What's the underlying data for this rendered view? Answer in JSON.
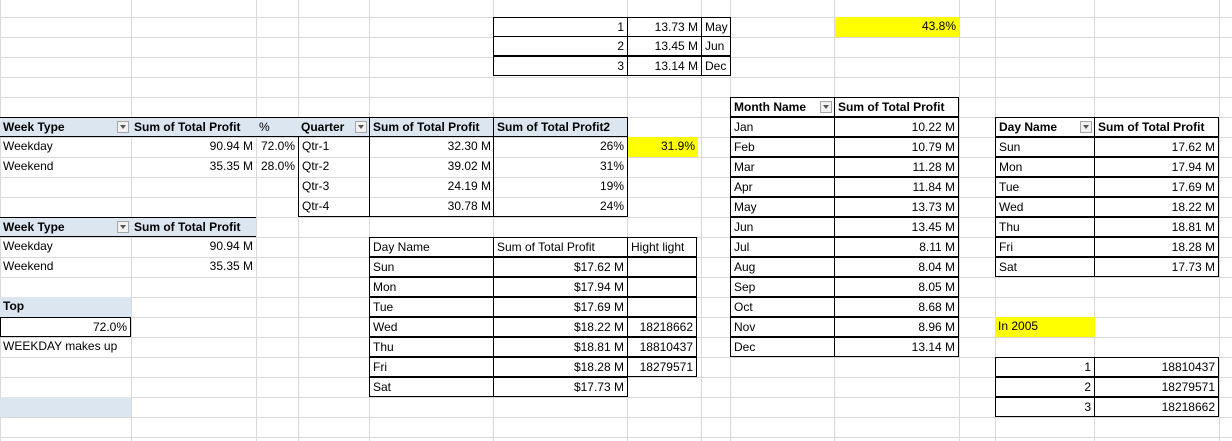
{
  "colors": {
    "highlight": "#ffff00",
    "pivot_header": "#dce6f1",
    "gridline": "#d9d9d9"
  },
  "top_month_list": [
    {
      "rank": "1",
      "value": "13.73 M",
      "month": "May"
    },
    {
      "rank": "2",
      "value": "13.45 M",
      "month": "Jun"
    },
    {
      "rank": "3",
      "value": "13.14 M",
      "month": "Dec"
    }
  ],
  "highlight_pct_top": "43.8%",
  "week_type_pivot": {
    "headers": [
      "Week Type",
      "Sum of Total Profit",
      "%"
    ],
    "rows": [
      {
        "type": "Weekday",
        "profit": "90.94 M",
        "pct": "72.0%"
      },
      {
        "type": "Weekend",
        "profit": "35.35 M",
        "pct": "28.0%"
      }
    ]
  },
  "quarter_pivot": {
    "headers": [
      "Quarter",
      "Sum of Total Profit",
      "Sum of Total Profit2"
    ],
    "rows": [
      {
        "q": "Qtr-1",
        "profit": "32.30 M",
        "pct": "26%"
      },
      {
        "q": "Qtr-2",
        "profit": "39.02 M",
        "pct": "31%"
      },
      {
        "q": "Qtr-3",
        "profit": "24.19 M",
        "pct": "19%"
      },
      {
        "q": "Qtr-4",
        "profit": "30.78 M",
        "pct": "24%"
      }
    ]
  },
  "highlight_pct_quarter": "31.9%",
  "week_type_pivot2": {
    "headers": [
      "Week Type",
      "Sum of Total Profit"
    ],
    "rows": [
      {
        "type": "Weekday",
        "profit": "90.94 M"
      },
      {
        "type": "Weekend",
        "profit": "35.35 M"
      }
    ]
  },
  "top_box": {
    "title": "Top",
    "value": "72.0%",
    "caption": "WEEKDAY makes up"
  },
  "day_table": {
    "headers": [
      "Day Name",
      "Sum of Total Profit",
      "Hight light"
    ],
    "rows": [
      {
        "day": "Sun",
        "profit": "$17.62 M",
        "hl": ""
      },
      {
        "day": "Mon",
        "profit": "$17.94 M",
        "hl": ""
      },
      {
        "day": "Tue",
        "profit": "$17.69 M",
        "hl": ""
      },
      {
        "day": "Wed",
        "profit": "$18.22 M",
        "hl": "18218662"
      },
      {
        "day": "Thu",
        "profit": "$18.81 M",
        "hl": "18810437"
      },
      {
        "day": "Fri",
        "profit": "$18.28 M",
        "hl": "18279571"
      },
      {
        "day": "Sat",
        "profit": "$17.73 M",
        "hl": ""
      }
    ]
  },
  "month_pivot": {
    "headers": [
      "Month Name",
      "Sum of Total Profit"
    ],
    "rows": [
      {
        "m": "Jan",
        "v": "10.22 M"
      },
      {
        "m": "Feb",
        "v": "10.79 M"
      },
      {
        "m": "Mar",
        "v": "11.28 M"
      },
      {
        "m": "Apr",
        "v": "11.84 M"
      },
      {
        "m": "May",
        "v": "13.73 M"
      },
      {
        "m": "Jun",
        "v": "13.45 M"
      },
      {
        "m": "Jul",
        "v": "8.11 M"
      },
      {
        "m": "Aug",
        "v": "8.04 M"
      },
      {
        "m": "Sep",
        "v": "8.05 M"
      },
      {
        "m": "Oct",
        "v": "8.68 M"
      },
      {
        "m": "Nov",
        "v": "8.96 M"
      },
      {
        "m": "Dec",
        "v": "13.14 M"
      }
    ]
  },
  "day_pivot": {
    "headers": [
      "Day Name",
      "Sum of Total Profit"
    ],
    "rows": [
      {
        "d": "Sun",
        "v": "17.62 M"
      },
      {
        "d": "Mon",
        "v": "17.94 M"
      },
      {
        "d": "Tue",
        "v": "17.69 M"
      },
      {
        "d": "Wed",
        "v": "18.22 M"
      },
      {
        "d": "Thu",
        "v": "18.81 M"
      },
      {
        "d": "Fri",
        "v": "18.28 M"
      },
      {
        "d": "Sat",
        "v": "17.73 M"
      }
    ]
  },
  "in_2005_label": "In 2005",
  "rank_list": [
    {
      "rank": "1",
      "value": "18810437"
    },
    {
      "rank": "2",
      "value": "18279571"
    },
    {
      "rank": "3",
      "value": "18218662"
    }
  ]
}
